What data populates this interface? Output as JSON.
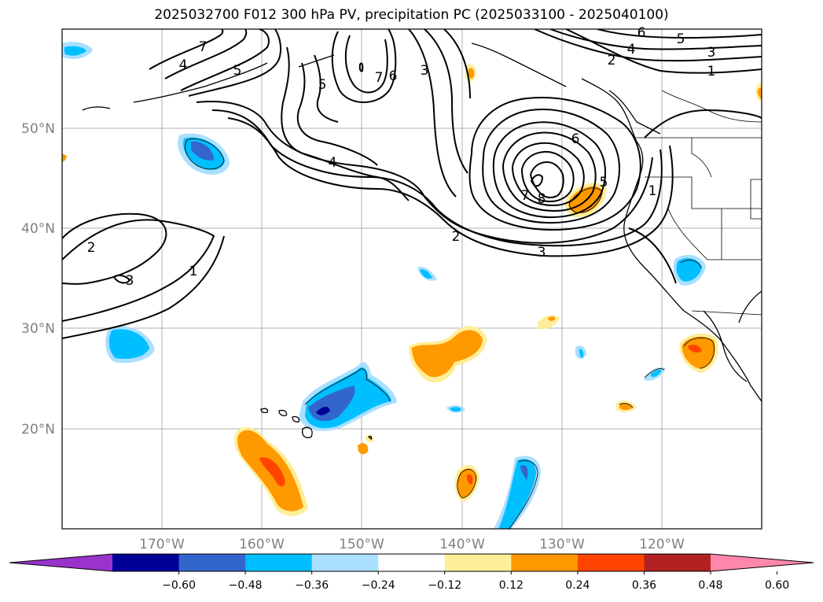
{
  "title": "2025032700 F012 300 hPa PV, precipitation PC (2025033100 - 2025040100)",
  "map": {
    "lat_labels": [
      "50°N",
      "40°N",
      "30°N",
      "20°N"
    ],
    "lon_labels": [
      "170°W",
      "160°W",
      "150°W",
      "140°W",
      "130°W",
      "120°W"
    ],
    "pv_contour_labels": [
      "7",
      "4",
      "5",
      "5",
      "7",
      "6",
      "3",
      "6",
      "5",
      "4",
      "3",
      "2",
      "1",
      "4",
      "6",
      "5",
      "1",
      "8",
      "7",
      "2",
      "3",
      "2",
      "1",
      "3"
    ]
  },
  "colorbar": {
    "colors": [
      "#9933cc",
      "#000099",
      "#3366cc",
      "#00bfff",
      "#aadfff",
      "#ffffff",
      "#ffee99",
      "#ff9900",
      "#ff4400",
      "#b22222",
      "#ff88aa"
    ],
    "labels": [
      "−0.60",
      "−0.48",
      "−0.36",
      "−0.24",
      "−0.12",
      "0.12",
      "0.24",
      "0.36",
      "0.48",
      "0.60"
    ]
  }
}
